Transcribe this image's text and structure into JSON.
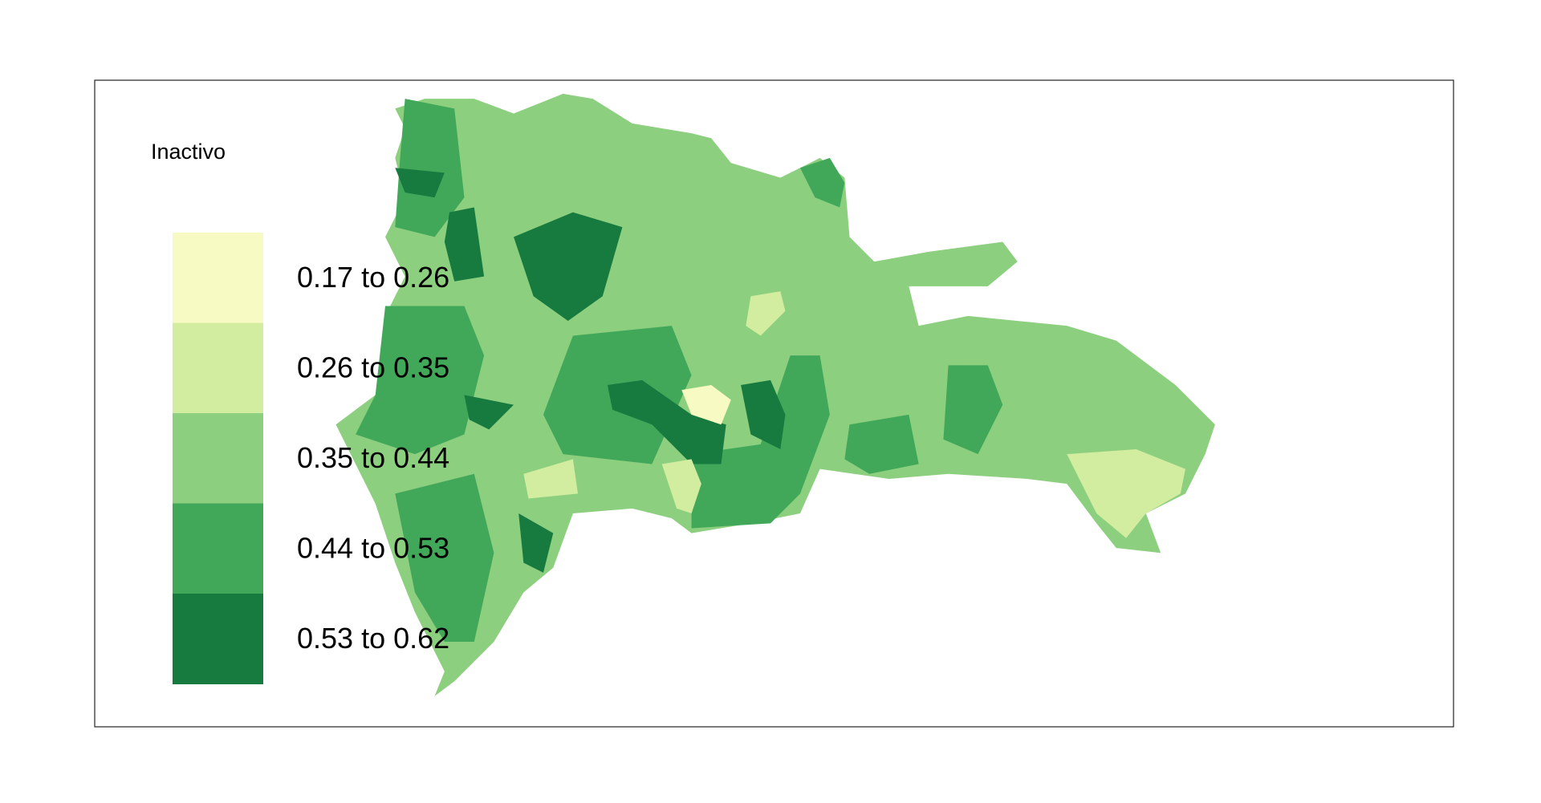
{
  "legend": {
    "title": "Inactivo",
    "items": [
      {
        "label": "0.17 to 0.26",
        "color": "#f7fbc3"
      },
      {
        "label": "0.26 to 0.35",
        "color": "#d2eca0"
      },
      {
        "label": "0.35 to 0.44",
        "color": "#8ccf7e"
      },
      {
        "label": "0.44 to 0.53",
        "color": "#41a85a"
      },
      {
        "label": "0.53 to 0.62",
        "color": "#177a3f"
      }
    ]
  }
}
